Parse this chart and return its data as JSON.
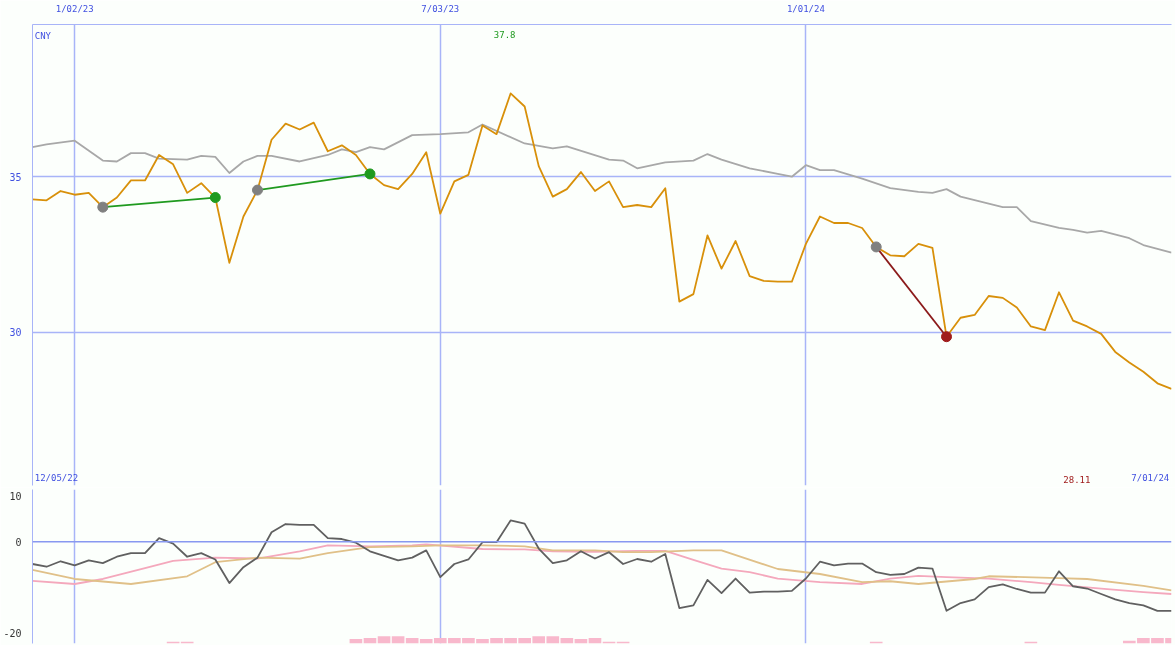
{
  "chart_data": [
    {
      "type": "line",
      "x": [
        "2022-12-12",
        "2022-12-19",
        "2022-12-26",
        "2023-01-02",
        "2023-01-09",
        "2023-01-16",
        "2023-01-23",
        "2023-01-30",
        "2023-02-06",
        "2023-02-13",
        "2023-02-20",
        "2023-02-27",
        "2023-03-06",
        "2023-03-13",
        "2023-03-20",
        "2023-03-27",
        "2023-04-03",
        "2023-04-10",
        "2023-04-17",
        "2023-04-24",
        "2023-05-01",
        "2023-05-08",
        "2023-05-15",
        "2023-05-22",
        "2023-05-29",
        "2023-06-05",
        "2023-06-12",
        "2023-06-19",
        "2023-06-26",
        "2023-07-03",
        "2023-07-10",
        "2023-07-17",
        "2023-07-24",
        "2023-07-31",
        "2023-08-07",
        "2023-08-14",
        "2023-08-21",
        "2023-08-28",
        "2023-09-04",
        "2023-09-11",
        "2023-09-18",
        "2023-09-25",
        "2023-10-02",
        "2023-10-09",
        "2023-10-16",
        "2023-10-23",
        "2023-10-30",
        "2023-11-06",
        "2023-11-13",
        "2023-11-20",
        "2023-11-27",
        "2023-12-04",
        "2023-12-11",
        "2023-12-18",
        "2023-12-25",
        "2024-01-01",
        "2024-01-08",
        "2024-01-15",
        "2024-01-22",
        "2024-01-29",
        "2024-02-05",
        "2024-02-12",
        "2024-02-19",
        "2024-02-26",
        "2024-03-04",
        "2024-03-11",
        "2024-03-18",
        "2024-03-25",
        "2024-04-01",
        "2024-04-08",
        "2024-04-15",
        "2024-04-22",
        "2024-04-29",
        "2024-05-06",
        "2024-05-13",
        "2024-05-20",
        "2024-05-27",
        "2024-06-03",
        "2024-06-10",
        "2024-06-17",
        "2024-06-24",
        "2024-07-01"
      ],
      "xlim": [
        "2022-12-12",
        "2024-07-01"
      ],
      "xticks": [
        {
          "value": "2023-01-02",
          "label": "1/02/23"
        },
        {
          "value": "2023-07-03",
          "label": "7/03/23"
        },
        {
          "value": "2024-01-01",
          "label": "1/01/24"
        }
      ],
      "ylim": [
        25.06,
        39.9
      ],
      "yticks": [
        30,
        35
      ],
      "grid": true,
      "annotations": [
        "CNY",
        "37.8",
        "28.11",
        "12/05/22",
        "7/01/24"
      ],
      "series": [
        {
          "color": "#a8a8a8",
          "x": [
            "2022-12-12",
            "2022-12-19",
            "2023-01-02",
            "2023-01-16",
            "2023-01-23",
            "2023-01-30",
            "2023-02-06",
            "2023-02-13",
            "2023-02-27",
            "2023-03-06",
            "2023-03-13",
            "2023-03-20",
            "2023-03-27",
            "2023-04-03",
            "2023-04-10",
            "2023-04-24",
            "2023-05-08",
            "2023-05-15",
            "2023-05-22",
            "2023-05-29",
            "2023-06-05",
            "2023-06-19",
            "2023-07-03",
            "2023-07-17",
            "2023-07-24",
            "2023-08-14",
            "2023-08-28",
            "2023-09-04",
            "2023-09-25",
            "2023-10-02",
            "2023-10-09",
            "2023-10-23",
            "2023-11-06",
            "2023-11-13",
            "2023-11-20",
            "2023-12-04",
            "2023-12-18",
            "2023-12-25",
            "2024-01-01",
            "2024-01-08",
            "2024-01-15",
            "2024-01-29",
            "2024-02-12",
            "2024-02-26",
            "2024-03-04",
            "2024-03-11",
            "2024-03-18",
            "2024-04-08",
            "2024-04-15",
            "2024-04-22",
            "2024-05-06",
            "2024-05-13",
            "2024-05-20",
            "2024-05-27",
            "2024-06-10",
            "2024-06-17",
            "2024-07-01"
          ],
          "values": [
            35.95,
            36.04,
            36.16,
            35.52,
            35.49,
            35.76,
            35.76,
            35.58,
            35.55,
            35.67,
            35.64,
            35.12,
            35.49,
            35.67,
            35.67,
            35.49,
            35.7,
            35.88,
            35.79,
            35.95,
            35.88,
            36.34,
            36.37,
            36.43,
            36.68,
            36.07,
            35.91,
            35.98,
            35.55,
            35.52,
            35.27,
            35.46,
            35.52,
            35.73,
            35.55,
            35.27,
            35.09,
            35.0,
            35.37,
            35.21,
            35.21,
            34.94,
            34.63,
            34.51,
            34.48,
            34.6,
            34.36,
            34.02,
            34.02,
            33.57,
            33.35,
            33.29,
            33.2,
            33.26,
            33.02,
            32.8,
            32.56
          ]
        },
        {
          "color": "#d8900a",
          "values": [
            34.27,
            34.24,
            34.54,
            34.42,
            34.48,
            34.02,
            34.33,
            34.88,
            34.88,
            35.7,
            35.4,
            34.48,
            34.79,
            34.33,
            32.23,
            33.72,
            34.57,
            36.19,
            36.71,
            36.52,
            36.74,
            35.82,
            36.01,
            35.7,
            35.09,
            34.73,
            34.6,
            35.09,
            35.79,
            33.81,
            34.85,
            35.06,
            36.65,
            36.37,
            37.68,
            37.26,
            35.34,
            34.36,
            34.6,
            35.15,
            34.54,
            34.85,
            34.02,
            34.09,
            34.02,
            34.63,
            30.98,
            31.22,
            33.11,
            32.04,
            32.93,
            31.8,
            31.65,
            31.62,
            31.62,
            32.84,
            33.72,
            33.51,
            33.51,
            33.35,
            32.74,
            32.47,
            32.44,
            32.84,
            32.71,
            29.85,
            30.46,
            30.55,
            31.16,
            31.1,
            30.79,
            30.18,
            30.06,
            31.28,
            30.37,
            30.18,
            29.94,
            29.36,
            29.02,
            28.72,
            28.35,
            28.17
          ]
        },
        {
          "color": "#1f9a1f",
          "marker": "circle",
          "colors": [
            "#808080",
            "#1f9a1f"
          ],
          "x": [
            "2023-01-16",
            "2023-03-13"
          ],
          "values": [
            34.02,
            34.33
          ]
        },
        {
          "color": "#1f9a1f",
          "marker": "circle",
          "colors": [
            "#808080",
            "#1f9a1f"
          ],
          "x": [
            "2023-04-03",
            "2023-05-29"
          ],
          "values": [
            34.57,
            35.09
          ]
        },
        {
          "color": "#8b1a1a",
          "marker": "circle",
          "colors": [
            "#808080",
            "#a01c1c"
          ],
          "x": [
            "2024-02-05",
            "2024-03-11"
          ],
          "values": [
            32.74,
            29.85
          ]
        }
      ]
    },
    {
      "type": "line",
      "xlim": [
        "2022-12-12",
        "2024-07-01"
      ],
      "xticks": [
        {
          "value": "2023-01-02",
          "label": null
        },
        {
          "value": "2023-07-03",
          "label": null
        },
        {
          "value": "2024-01-01",
          "label": null
        }
      ],
      "tick_labels": "y",
      "ylim": [
        -22.4,
        11.5
      ],
      "yticks": [
        -20,
        0,
        10
      ],
      "grid": "x",
      "ref_lines": [
        {
          "axis": "y",
          "value": 0,
          "color": "#8898f0"
        }
      ],
      "series": [
        {
          "type": "bar",
          "color": "#f8b8cc",
          "x": [
            "2023-02-20",
            "2023-02-27",
            "2023-05-22",
            "2023-05-29",
            "2023-06-05",
            "2023-06-12",
            "2023-06-19",
            "2023-06-26",
            "2023-07-03",
            "2023-07-10",
            "2023-07-17",
            "2023-07-24",
            "2023-07-31",
            "2023-08-07",
            "2023-08-14",
            "2023-08-21",
            "2023-08-28",
            "2023-09-04",
            "2023-09-11",
            "2023-09-18",
            "2023-09-25",
            "2023-10-02",
            "2024-02-05",
            "2024-04-22",
            "2024-06-10",
            "2024-06-17",
            "2024-06-24",
            "2024-07-01"
          ],
          "base": [
            -22.4,
            -22.4,
            -22.4,
            -22.4,
            -22.4,
            -22.4,
            -22.4,
            -22.4,
            -22.4,
            -22.4,
            -22.4,
            -22.4,
            -22.4,
            -22.4,
            -22.4,
            -22.4,
            -22.4,
            -22.4,
            -22.4,
            -22.4,
            -22.4,
            -22.4,
            -22.4,
            -22.4,
            -22.4,
            -22.4,
            -22.4,
            -22.4
          ],
          "values": [
            0.4,
            0.4,
            1.0,
            1.2,
            1.6,
            1.6,
            1.2,
            1.0,
            1.2,
            1.2,
            1.2,
            1.0,
            1.2,
            1.2,
            1.2,
            1.6,
            1.6,
            1.2,
            1.0,
            1.2,
            0.4,
            0.4,
            0.4,
            0.4,
            0.6,
            1.2,
            1.2,
            1.2
          ]
        },
        {
          "color": "#f4a8bc",
          "x": [
            "2022-12-12",
            "2023-01-02",
            "2023-01-16",
            "2023-02-06",
            "2023-02-20",
            "2023-03-13",
            "2023-04-03",
            "2023-04-24",
            "2023-05-08",
            "2023-05-29",
            "2023-06-19",
            "2023-06-26",
            "2023-07-24",
            "2023-08-14",
            "2023-08-28",
            "2023-09-18",
            "2023-10-09",
            "2023-10-23",
            "2023-11-06",
            "2023-11-20",
            "2023-12-04",
            "2023-12-18",
            "2024-01-08",
            "2024-01-29",
            "2024-02-12",
            "2024-02-26",
            "2024-03-11",
            "2024-04-01",
            "2024-04-22",
            "2024-05-06",
            "2024-05-27",
            "2024-06-17",
            "2024-07-01"
          ],
          "values": [
            -8.6,
            -9.3,
            -8.2,
            -5.8,
            -4.2,
            -3.5,
            -3.7,
            -2.1,
            -0.8,
            -1.0,
            -0.8,
            -0.6,
            -1.6,
            -1.7,
            -2.1,
            -2.2,
            -2.0,
            -2.0,
            -4.0,
            -5.9,
            -6.7,
            -8.1,
            -8.9,
            -9.3,
            -8.1,
            -7.5,
            -7.8,
            -8.1,
            -8.9,
            -9.5,
            -10.3,
            -11.1,
            -11.5
          ]
        },
        {
          "color": "#e0c088",
          "x": [
            "2022-12-12",
            "2023-01-02",
            "2023-01-30",
            "2023-02-27",
            "2023-03-13",
            "2023-04-03",
            "2023-04-24",
            "2023-05-08",
            "2023-05-29",
            "2023-06-19",
            "2023-07-03",
            "2023-07-24",
            "2023-08-14",
            "2023-08-28",
            "2023-09-18",
            "2023-10-02",
            "2023-10-16",
            "2023-11-06",
            "2023-11-20",
            "2023-12-18",
            "2024-01-08",
            "2024-01-29",
            "2024-02-12",
            "2024-02-26",
            "2024-03-25",
            "2024-04-01",
            "2024-05-06",
            "2024-05-20",
            "2024-06-17",
            "2024-07-01"
          ],
          "values": [
            -6.2,
            -8.2,
            -9.3,
            -7.6,
            -4.5,
            -3.5,
            -3.7,
            -2.5,
            -1.2,
            -1.0,
            -0.8,
            -0.8,
            -1.0,
            -1.9,
            -1.9,
            -2.3,
            -2.3,
            -1.9,
            -1.9,
            -6.0,
            -7.1,
            -8.9,
            -8.7,
            -9.3,
            -8.2,
            -7.6,
            -8.0,
            -8.2,
            -9.7,
            -10.7
          ]
        },
        {
          "color": "#606060",
          "x": [
            "2022-12-12",
            "2022-12-19",
            "2022-12-26",
            "2023-01-02",
            "2023-01-09",
            "2023-01-16",
            "2023-01-23",
            "2023-01-30",
            "2023-02-06",
            "2023-02-13",
            "2023-02-20",
            "2023-02-27",
            "2023-03-06",
            "2023-03-13",
            "2023-03-20",
            "2023-03-27",
            "2023-04-03",
            "2023-04-10",
            "2023-04-17",
            "2023-04-24",
            "2023-05-01",
            "2023-05-08",
            "2023-05-15",
            "2023-05-22",
            "2023-05-29",
            "2023-06-05",
            "2023-06-12",
            "2023-06-19",
            "2023-06-26",
            "2023-07-03",
            "2023-07-10",
            "2023-07-17",
            "2023-07-24",
            "2023-07-31",
            "2023-08-07",
            "2023-08-14",
            "2023-08-21",
            "2023-08-28",
            "2023-09-04",
            "2023-09-11",
            "2023-09-18",
            "2023-09-25",
            "2023-10-02",
            "2023-10-09",
            "2023-10-16",
            "2023-10-23",
            "2023-10-30",
            "2023-11-06",
            "2023-11-13",
            "2023-11-20",
            "2023-11-27",
            "2023-12-04",
            "2023-12-11",
            "2023-12-18",
            "2023-12-25",
            "2024-01-01",
            "2024-01-08",
            "2024-01-15",
            "2024-01-22",
            "2024-01-29",
            "2024-02-05",
            "2024-02-12",
            "2024-02-19",
            "2024-02-26",
            "2024-03-04",
            "2024-03-11",
            "2024-03-18",
            "2024-03-25",
            "2024-04-01",
            "2024-04-08",
            "2024-04-15",
            "2024-04-22",
            "2024-04-29",
            "2024-05-06",
            "2024-05-13",
            "2024-05-20",
            "2024-05-27",
            "2024-06-03",
            "2024-06-10",
            "2024-06-17",
            "2024-06-24",
            "2024-07-01"
          ],
          "values": [
            -4.9,
            -5.5,
            -4.3,
            -5.2,
            -4.1,
            -4.7,
            -3.3,
            -2.5,
            -2.5,
            0.8,
            -0.4,
            -3.3,
            -2.5,
            -3.9,
            -9.1,
            -5.6,
            -3.5,
            2.1,
            3.9,
            3.7,
            3.7,
            0.8,
            0.6,
            -0.2,
            -2.1,
            -3.1,
            -4.1,
            -3.5,
            -1.9,
            -7.8,
            -4.9,
            -3.9,
            -0.1,
            -0.1,
            4.7,
            4.0,
            -1.5,
            -4.7,
            -4.1,
            -2.1,
            -3.7,
            -2.3,
            -4.9,
            -3.8,
            -4.4,
            -2.7,
            -14.6,
            -14.0,
            -8.4,
            -11.3,
            -8.1,
            -11.2,
            -11.0,
            -11.0,
            -10.8,
            -8.1,
            -4.4,
            -5.2,
            -4.8,
            -4.8,
            -6.7,
            -7.3,
            -7.1,
            -5.7,
            -5.9,
            -15.2,
            -13.5,
            -12.7,
            -10.0,
            -9.4,
            -10.4,
            -11.2,
            -11.2,
            -6.5,
            -9.8,
            -10.3,
            -11.5,
            -12.7,
            -13.5,
            -14.0,
            -15.2,
            -15.2
          ]
        }
      ]
    }
  ]
}
